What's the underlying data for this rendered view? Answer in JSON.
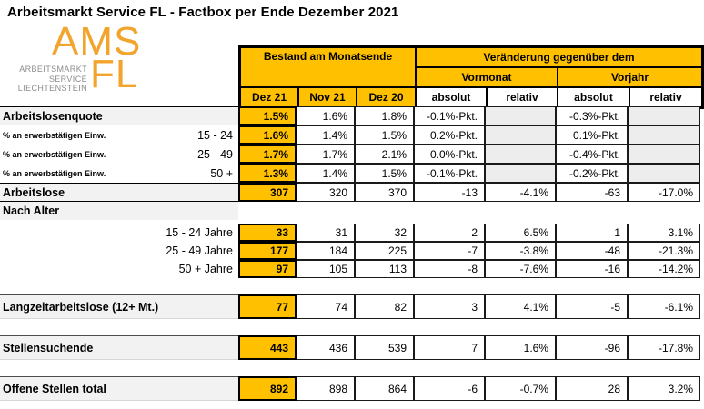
{
  "title": "Arbeitsmarkt Service FL - Factbox per Ende Dezember 2021",
  "logo": {
    "ams": "AMS",
    "fl": "FL",
    "subtitle_lines": [
      "ARBEITSMARKT",
      "SERVICE",
      "LIECHTENSTEIN"
    ]
  },
  "colors": {
    "table_orange": "#FFC000",
    "logo_orange": "#F2A42C",
    "label_gray": "#F2F2F2",
    "empty_cell_gray": "#EDEDED",
    "border_black": "#000000",
    "logo_text_gray": "#8C8C8C"
  },
  "table": {
    "header": {
      "bestand": "Bestand am Monatsende",
      "veraenderung": "Veränderung gegenüber dem",
      "vormonat": "Vormonat",
      "vorjahr": "Vorjahr",
      "months": [
        "Dez 21",
        "Nov 21",
        "Dez 20"
      ],
      "measures": [
        "absolut",
        "relativ",
        "absolut",
        "relativ"
      ]
    },
    "rows": [
      {
        "kind": "quota-main",
        "label": "Arbeitslosenquote",
        "values": [
          "1.5%",
          "1.6%",
          "1.8%",
          "-0.1%-Pkt.",
          "",
          "-0.3%-Pkt.",
          ""
        ]
      },
      {
        "kind": "quota-sub",
        "label": "% an erwerbstätigen Einw.",
        "range": "15 - 24",
        "values": [
          "1.6%",
          "1.4%",
          "1.5%",
          "0.2%-Pkt.",
          "",
          "0.1%-Pkt.",
          ""
        ]
      },
      {
        "kind": "quota-sub",
        "label": "% an erwerbstätigen Einw.",
        "range": "25 - 49",
        "values": [
          "1.7%",
          "1.7%",
          "2.1%",
          "0.0%-Pkt.",
          "",
          "-0.4%-Pkt.",
          ""
        ]
      },
      {
        "kind": "quota-sub",
        "label": "% an erwerbstätigen Einw.",
        "range": "50 +",
        "values": [
          "1.3%",
          "1.4%",
          "1.5%",
          "-0.1%-Pkt.",
          "",
          "-0.2%-Pkt.",
          ""
        ]
      },
      {
        "kind": "section",
        "label": "Arbeitslose",
        "values": [
          "307",
          "320",
          "370",
          "-13",
          "-4.1%",
          "-63",
          "-17.0%"
        ]
      },
      {
        "kind": "label-only",
        "label": "Nach Alter"
      },
      {
        "kind": "age",
        "label": "15 - 24 Jahre",
        "values": [
          "33",
          "31",
          "32",
          "2",
          "6.5%",
          "1",
          "3.1%"
        ]
      },
      {
        "kind": "age",
        "label": "25 - 49 Jahre",
        "values": [
          "177",
          "184",
          "225",
          "-7",
          "-3.8%",
          "-48",
          "-21.3%"
        ]
      },
      {
        "kind": "age",
        "label": "50 + Jahre",
        "values": [
          "97",
          "105",
          "113",
          "-8",
          "-7.6%",
          "-16",
          "-14.2%"
        ]
      },
      {
        "kind": "block",
        "label": "Langzeitarbeitslose (12+ Mt.)",
        "values": [
          "77",
          "74",
          "82",
          "3",
          "4.1%",
          "-5",
          "-6.1%"
        ]
      },
      {
        "kind": "block",
        "label": "Stellensuchende",
        "values": [
          "443",
          "436",
          "539",
          "7",
          "1.6%",
          "-96",
          "-17.8%"
        ]
      },
      {
        "kind": "block",
        "label": "Offene Stellen total",
        "values": [
          "892",
          "898",
          "864",
          "-6",
          "-0.7%",
          "28",
          "3.2%"
        ]
      }
    ]
  }
}
